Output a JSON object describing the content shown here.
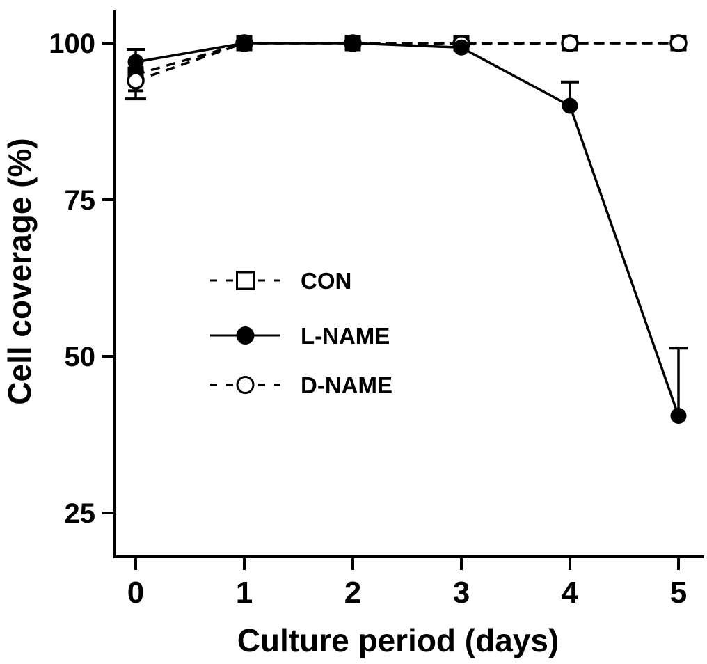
{
  "figure": {
    "background_color": "#ffffff",
    "foreground_color": "#000000"
  },
  "chart_data": {
    "type": "line",
    "title": "",
    "xlabel": "Culture period (days)",
    "ylabel": "Cell coverage (%)",
    "x_values": [
      0,
      1,
      2,
      3,
      4,
      5
    ],
    "x_ticks": [
      "0",
      "1",
      "2",
      "3",
      "4",
      "5"
    ],
    "y_tick_values": [
      100,
      75,
      50,
      25
    ],
    "y_ticks": [
      "100",
      "75",
      "50",
      "25"
    ],
    "ylim": [
      18,
      105
    ],
    "xlim": [
      -0.2,
      5.2
    ],
    "grid": false,
    "legend_position": "center-left",
    "colors": {
      "foreground": "#000000",
      "background": "#ffffff"
    },
    "series": [
      {
        "name": "CON",
        "label": "CON",
        "line_style": "dashed",
        "marker": "open-square",
        "marker_rendered_in_plot": "filled-square",
        "values": [
          95,
          100,
          100,
          100,
          100,
          100
        ]
      },
      {
        "name": "L-NAME",
        "label": "L-NAME",
        "line_style": "solid",
        "marker": "filled-circle",
        "marker_rendered_in_plot": "filled-circle",
        "values": [
          97,
          100,
          100,
          99.3,
          90,
          40.5
        ]
      },
      {
        "name": "D-NAME",
        "label": "D-NAME",
        "line_style": "dashed",
        "marker": "open-circle",
        "marker_rendered_in_plot": "open-circle",
        "values": [
          94,
          100,
          100,
          99.9,
          100,
          100
        ]
      }
    ],
    "error_bars": [
      {
        "series": "L-NAME",
        "x": 0,
        "from": 97,
        "to": 99,
        "cap_width": 26
      },
      {
        "series": "CON",
        "x": 0,
        "from": 95,
        "to": 92.4,
        "cap_width": 22
      },
      {
        "series": "D-NAME",
        "x": 0,
        "from": 94,
        "to": 91.1,
        "cap_width": 30
      },
      {
        "series": "L-NAME",
        "x": 4,
        "from": 90,
        "to": 93.8,
        "cap_width": 26
      },
      {
        "series": "L-NAME",
        "x": 5,
        "from": 40.5,
        "to": 51.3,
        "cap_width": 26
      }
    ],
    "marker_stacks": [
      {
        "day": 0,
        "stack": [
          {
            "s": "CON",
            "v": 95
          },
          {
            "s": "L-NAME",
            "v": 97
          },
          {
            "s": "D-NAME",
            "v": 94
          }
        ]
      },
      {
        "day": 1,
        "stack": [
          {
            "s": "D-NAME",
            "v": 100
          },
          {
            "s": "L-NAME",
            "v": 100
          },
          {
            "s": "CON",
            "v": 100
          }
        ]
      },
      {
        "day": 2,
        "stack": [
          {
            "s": "D-NAME",
            "v": 100
          },
          {
            "s": "L-NAME",
            "v": 100
          },
          {
            "s": "CON",
            "v": 100
          }
        ]
      },
      {
        "day": 3,
        "stack": [
          {
            "s": "CON",
            "v": 100
          },
          {
            "s": "D-NAME",
            "v": 99.9
          },
          {
            "s": "L-NAME",
            "v": 99.3
          }
        ]
      },
      {
        "day": 4,
        "stack": [
          {
            "s": "L-NAME",
            "v": 90
          },
          {
            "s": "CON",
            "v": 100
          },
          {
            "s": "D-NAME",
            "v": 100
          }
        ]
      },
      {
        "day": 5,
        "stack": [
          {
            "s": "L-NAME",
            "v": 40.5
          },
          {
            "s": "CON",
            "v": 100
          },
          {
            "s": "D-NAME",
            "v": 100
          }
        ]
      }
    ]
  }
}
